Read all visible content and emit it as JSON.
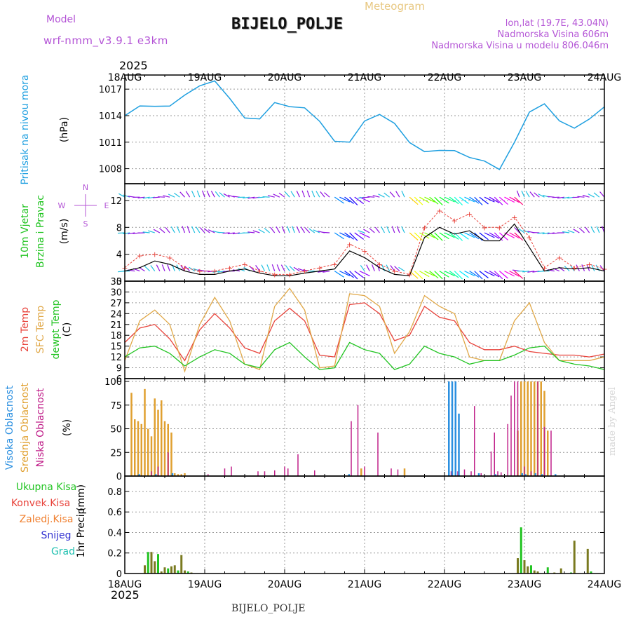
{
  "header": {
    "model_label": "Model",
    "model_name": "wrf-nmm_v3.9.1  e3km",
    "station": "BIJELO_POLJE",
    "meteogram": "Meteogram",
    "info_lines": [
      "lon,lat (19.7E, 43.04N)",
      "Nadmorska Visina 606m",
      "Nadmorska Visina u modelu 806.046m"
    ],
    "footer_station": "BIJELO_POLJE",
    "made_by": "made by Angel"
  },
  "colors": {
    "pressure": "#1e9fe0",
    "temp2m": "#e8423a",
    "sfc_temp": "#e0a848",
    "dewpoint": "#22c422",
    "wind_speed": "#000000",
    "gust": "#e8423a",
    "high_cloud": "#2a8fe0",
    "mid_cloud": "#e0a030",
    "low_cloud": "#c0208a",
    "total_precip": "#22c422",
    "conv_precip": "#e8423a",
    "frz_precip": "#f08030",
    "snow": "#3030d0",
    "hail": "#20c0b0",
    "precip_bar": "#7a7a20",
    "arrow": "#9010e0",
    "purple_label": "#b455d6"
  },
  "chart_data": [
    {
      "type": "line",
      "panel": "pressure",
      "title": "Pritisak na nivou mora",
      "ylabel": "(hPa)",
      "ylim": [
        1006.3,
        1018.6
      ],
      "yticks": [
        1008,
        1011,
        1014,
        1017
      ],
      "year": "2025",
      "x_start": "18AUG 00h",
      "x_step_hours": 6,
      "xticks": [
        "18AUG",
        "19AUG",
        "20AUG",
        "21AUG",
        "22AUG",
        "23AUG",
        "24AUG"
      ],
      "series": [
        {
          "name": "Pritisak",
          "values": [
            1014.0,
            1015.0,
            1015.2,
            1015.0,
            1016.3,
            1017.5,
            1017.8,
            1016.0,
            1013.8,
            1013.5,
            1015.6,
            1015.0,
            1014.8,
            1013.5,
            1011.0,
            1011.0,
            1013.5,
            1014.0,
            1013.2,
            1011.0,
            1009.8,
            1010.2,
            1010.0,
            1009.2,
            1009.0,
            1007.8,
            1011.0,
            1014.5,
            1015.2,
            1013.5,
            1012.6,
            1013.5,
            1015.0
          ]
        }
      ]
    },
    {
      "type": "line",
      "panel": "wind",
      "title": "10m Vjetar",
      "title2": "Brzina i Pravac",
      "ylabel": "(m/s)",
      "ylim": [
        0,
        14.5
      ],
      "yticks": [
        0,
        4,
        8,
        12
      ],
      "compass": {
        "north": "N",
        "south": "S",
        "east": "E",
        "west": "W"
      },
      "series": [
        {
          "name": "Brzina",
          "values": [
            1.5,
            2.0,
            3.0,
            2.5,
            1.5,
            1.0,
            1.0,
            1.5,
            1.8,
            1.2,
            0.8,
            0.8,
            1.2,
            1.5,
            1.8,
            4.5,
            3.5,
            2.0,
            1.0,
            0.8,
            6.5,
            8.0,
            7.0,
            7.5,
            6.0,
            6.0,
            8.5,
            5.0,
            1.5,
            2.0,
            1.8,
            2.0,
            1.5
          ]
        },
        {
          "name": "Udari",
          "values": [
            2.0,
            3.8,
            4.0,
            3.5,
            2.0,
            1.5,
            1.5,
            2.0,
            2.5,
            1.5,
            1.0,
            1.0,
            1.5,
            2.0,
            2.5,
            5.5,
            4.5,
            2.5,
            1.5,
            1.0,
            8.0,
            10.5,
            9.0,
            10.0,
            8.0,
            8.0,
            9.5,
            6.5,
            2.0,
            3.5,
            2.0,
            2.5,
            1.8
          ]
        }
      ]
    },
    {
      "type": "line",
      "panel": "temperature",
      "title": "2m Temp",
      "title2": "SFC Temp",
      "title3": "dewpt Temp",
      "ylabel": "(C)",
      "ylim": [
        6,
        33
      ],
      "yticks": [
        6,
        9,
        12,
        15,
        18,
        21,
        24,
        27,
        30,
        33
      ],
      "series": [
        {
          "name": "2m Temp",
          "values": [
            16.0,
            20.0,
            21.0,
            17.0,
            11.0,
            19.5,
            24.0,
            20.0,
            14.5,
            13.0,
            22.0,
            25.5,
            22.0,
            12.5,
            12.0,
            26.5,
            27.0,
            24.0,
            16.5,
            18.0,
            26.0,
            23.0,
            22.0,
            16.0,
            14.0,
            14.0,
            15.0,
            13.5,
            13.0,
            12.5,
            12.5,
            12.0,
            12.8
          ]
        },
        {
          "name": "SFC Temp",
          "values": [
            11.0,
            22.0,
            25.0,
            21.0,
            8.0,
            21.0,
            28.5,
            22.0,
            10.0,
            8.5,
            26.0,
            31.0,
            25.0,
            9.0,
            9.5,
            29.5,
            29.0,
            26.0,
            13.0,
            19.0,
            29.0,
            26.0,
            24.0,
            12.0,
            11.0,
            11.0,
            22.0,
            27.0,
            16.0,
            11.0,
            11.0,
            11.0,
            12.0
          ]
        },
        {
          "name": "dewpt Temp",
          "values": [
            12.0,
            14.5,
            15.0,
            13.0,
            9.5,
            12.0,
            14.0,
            13.0,
            10.0,
            9.0,
            14.0,
            16.0,
            12.0,
            8.5,
            9.0,
            16.0,
            14.0,
            13.0,
            8.5,
            10.0,
            15.0,
            13.0,
            12.0,
            10.0,
            11.0,
            11.0,
            12.5,
            14.5,
            15.0,
            11.0,
            10.0,
            9.5,
            8.5
          ]
        }
      ]
    },
    {
      "type": "bar",
      "panel": "cloud",
      "title": "Visoka Oblacnost",
      "title2": "Srednja Oblacnost",
      "title3": "Niska Oblacnost",
      "ylabel": "(%)",
      "ylim": [
        0,
        103
      ],
      "yticks": [
        0,
        25,
        50,
        75,
        100
      ],
      "series": [
        {
          "name": "Srednja",
          "hours": [
            2,
            3,
            4,
            5,
            6,
            7,
            8,
            9,
            10,
            11,
            12,
            13,
            14,
            15,
            16,
            17,
            18,
            71,
            84,
            118,
            119,
            120,
            121,
            122,
            123,
            124,
            125,
            126,
            127
          ],
          "values": [
            88,
            60,
            58,
            55,
            92,
            50,
            42,
            82,
            70,
            80,
            58,
            55,
            46,
            3,
            2,
            2,
            3,
            8,
            8,
            48,
            100,
            100,
            100,
            100,
            100,
            100,
            100,
            90,
            48
          ]
        },
        {
          "name": "Niska",
          "hours": [
            8,
            10,
            13,
            25,
            30,
            32,
            40,
            42,
            45,
            48,
            49,
            52,
            57,
            68,
            70,
            72,
            76,
            80,
            82,
            98,
            100,
            102,
            104,
            105,
            107,
            110,
            111,
            112,
            113,
            115,
            116,
            117,
            118,
            120,
            122,
            124,
            126,
            128
          ],
          "values": [
            5,
            10,
            25,
            2,
            8,
            10,
            5,
            5,
            6,
            10,
            8,
            23,
            6,
            58,
            75,
            10,
            46,
            8,
            7,
            5,
            5,
            7,
            5,
            74,
            3,
            26,
            46,
            5,
            4,
            55,
            85,
            100,
            100,
            10,
            5,
            100,
            52,
            48
          ]
        },
        {
          "name": "Visoka",
          "hours": [
            4,
            9,
            14,
            67,
            97,
            98,
            99,
            100,
            106,
            111,
            119,
            120,
            123,
            125,
            129
          ],
          "values": [
            2,
            2,
            3,
            2,
            100,
            100,
            100,
            66,
            3,
            2,
            3,
            2,
            3,
            2,
            2
          ]
        }
      ]
    },
    {
      "type": "bar",
      "panel": "precip",
      "title": "1hr Precip",
      "ylabel": "(mm)",
      "legend": [
        "Ukupna  Kisa",
        "Konvek.Kisa",
        "Zaledj.Kisa",
        "Snijeg",
        "Grad"
      ],
      "ylim": [
        0,
        0.95
      ],
      "yticks": [
        0,
        0.2,
        0.4,
        0.6,
        0.8
      ],
      "series": [
        {
          "name": "Ukupna Kisa",
          "hours": [
            6,
            7,
            8,
            9,
            10,
            11,
            12,
            13,
            14,
            15,
            16,
            17,
            18,
            19,
            20,
            118,
            119,
            120,
            121,
            122,
            123,
            124,
            127,
            129,
            131,
            134,
            135,
            139,
            140
          ],
          "values": [
            0.08,
            0.21,
            0.21,
            0.12,
            0.19,
            0.02,
            0.06,
            0.05,
            0.07,
            0.08,
            0.03,
            0.18,
            0.03,
            0.02,
            0.01,
            0.15,
            0.45,
            0.13,
            0.07,
            0.08,
            0.03,
            0.02,
            0.06,
            0.01,
            0.05,
            0.01,
            0.32,
            0.24,
            0.02
          ]
        }
      ]
    }
  ]
}
